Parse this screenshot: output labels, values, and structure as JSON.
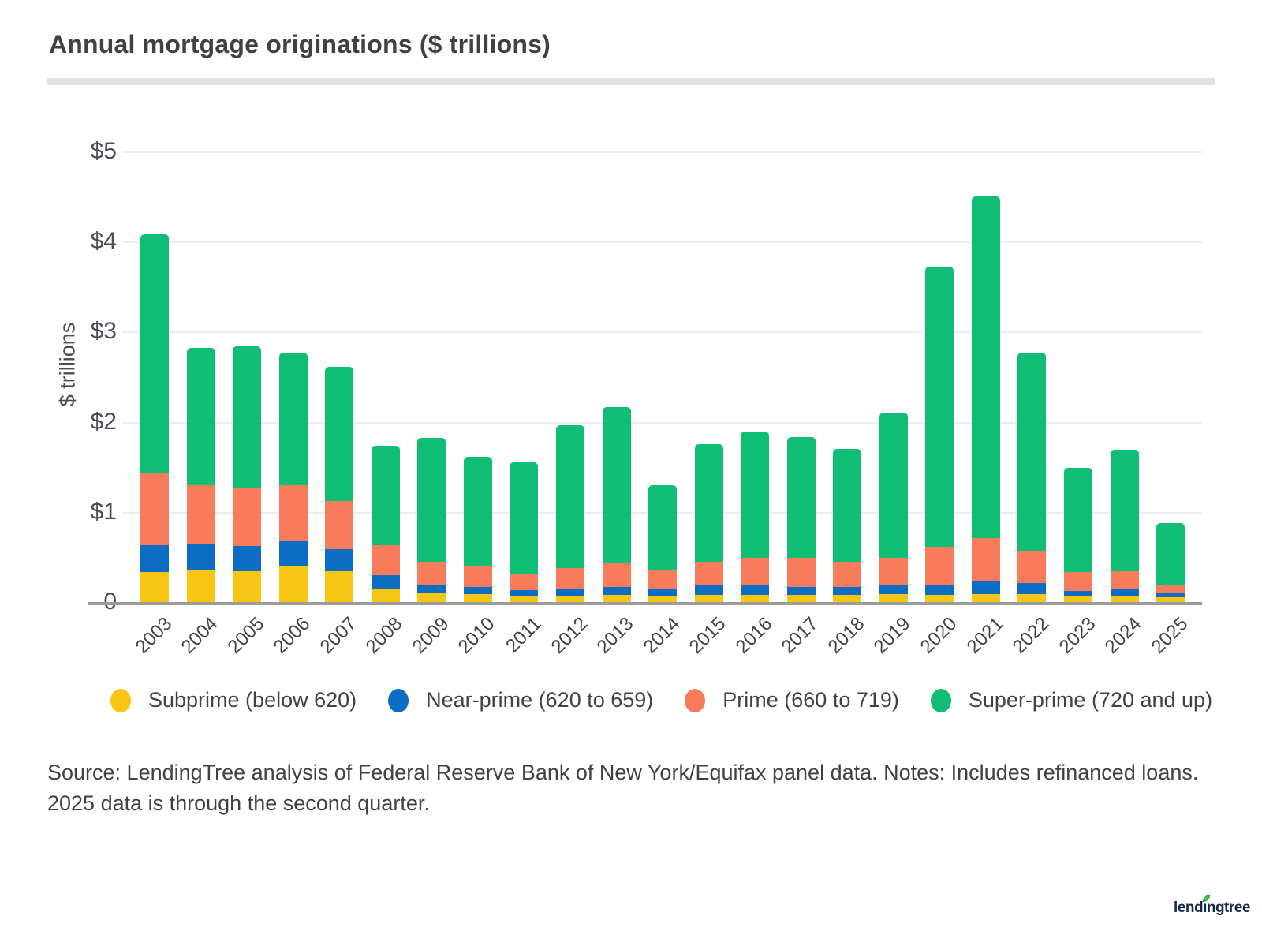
{
  "title": "Annual mortgage originations ($ trillions)",
  "y_axis": {
    "label": "$ trillions",
    "ticks": [
      {
        "label": "$5",
        "value": 5
      },
      {
        "label": "$4",
        "value": 4
      },
      {
        "label": "$3",
        "value": 3
      },
      {
        "label": "$2",
        "value": 2
      },
      {
        "label": "$1",
        "value": 1
      },
      {
        "label": "0",
        "value": 0
      }
    ]
  },
  "legend": [
    {
      "label": "Subprime (below 620)",
      "color": "#f9c513"
    },
    {
      "label": "Near-prime (620 to 659)",
      "color": "#0c6dc4"
    },
    {
      "label": "Prime (660 to 719)",
      "color": "#f87b5c"
    },
    {
      "label": "Super-prime (720 and up)",
      "color": "#0fbe74"
    }
  ],
  "source_note": "Source: LendingTree analysis of Federal Reserve Bank of New York/Equifax panel data. Notes: Includes refinanced loans. 2025 data is through the second quarter.",
  "logo": {
    "pre": "lend",
    "rest": "ıngtree",
    "leaf_color": "#23b24b"
  },
  "chart_data": {
    "type": "bar",
    "stacked": true,
    "title": "Annual mortgage originations ($ trillions)",
    "xlabel": "",
    "ylabel": "$ trillions",
    "ylim": [
      0,
      5
    ],
    "grid": true,
    "legend_position": "bottom",
    "categories": [
      2003,
      2004,
      2005,
      2006,
      2007,
      2008,
      2009,
      2010,
      2011,
      2012,
      2013,
      2014,
      2015,
      2016,
      2017,
      2018,
      2019,
      2020,
      2021,
      2022,
      2023,
      2024,
      2025
    ],
    "series": [
      {
        "name": "Subprime (below 620)",
        "color": "#f9c513",
        "values": [
          0.33,
          0.36,
          0.34,
          0.39,
          0.34,
          0.15,
          0.1,
          0.09,
          0.07,
          0.06,
          0.08,
          0.07,
          0.08,
          0.08,
          0.08,
          0.08,
          0.09,
          0.08,
          0.09,
          0.09,
          0.06,
          0.07,
          0.05
        ]
      },
      {
        "name": "Near-prime (620 to 659)",
        "color": "#0c6dc4",
        "values": [
          0.3,
          0.28,
          0.28,
          0.28,
          0.25,
          0.15,
          0.09,
          0.08,
          0.06,
          0.08,
          0.09,
          0.07,
          0.1,
          0.1,
          0.09,
          0.09,
          0.1,
          0.11,
          0.14,
          0.12,
          0.06,
          0.07,
          0.05
        ]
      },
      {
        "name": "Prime (660 to 719)",
        "color": "#f87b5c",
        "values": [
          0.81,
          0.66,
          0.65,
          0.63,
          0.53,
          0.33,
          0.26,
          0.22,
          0.18,
          0.24,
          0.27,
          0.22,
          0.27,
          0.31,
          0.32,
          0.28,
          0.3,
          0.42,
          0.48,
          0.35,
          0.21,
          0.2,
          0.08
        ]
      },
      {
        "name": "Super-prime (720 and up)",
        "color": "#0fbe74",
        "values": [
          2.64,
          1.52,
          1.57,
          1.47,
          1.49,
          1.1,
          1.37,
          1.22,
          1.24,
          1.58,
          1.72,
          0.94,
          1.3,
          1.4,
          1.34,
          1.25,
          1.61,
          3.11,
          3.79,
          2.21,
          1.16,
          1.35,
          0.7
        ]
      }
    ],
    "totals": [
      4.08,
      2.82,
      2.84,
      2.77,
      2.61,
      1.73,
      1.82,
      1.61,
      1.55,
      1.96,
      2.16,
      1.3,
      1.75,
      1.89,
      1.83,
      1.7,
      2.1,
      3.72,
      4.5,
      2.77,
      1.49,
      1.69,
      0.88
    ]
  }
}
